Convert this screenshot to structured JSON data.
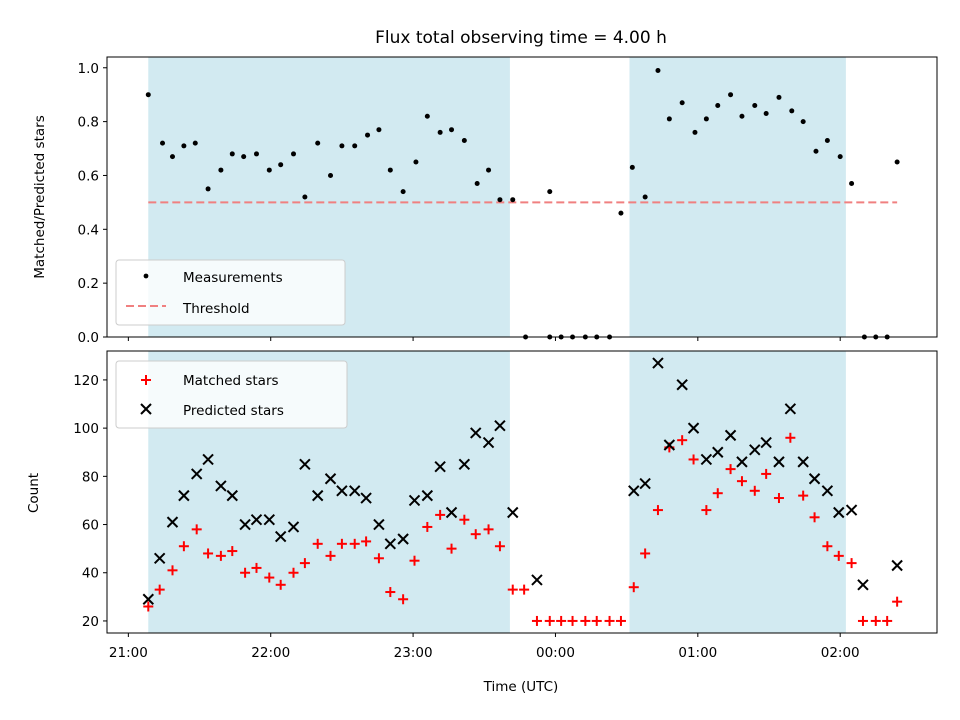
{
  "title": "Flux total observing time = 4.00 h",
  "xlabel": "Time (UTC)",
  "x_tick_labels": [
    "21:00",
    "22:00",
    "23:00",
    "00:00",
    "01:00",
    "02:00"
  ],
  "colors": {
    "shade": "#add8e6",
    "threshold": "#f08080",
    "matched": "#ff0000",
    "predicted": "#000000",
    "measurement": "#000000"
  },
  "chart_data": [
    {
      "type": "scatter",
      "ylabel": "Matched/Predicted stars",
      "x_unit": "hours after 21:00 UTC",
      "xlim": [
        -0.15,
        5.68
      ],
      "ylim": [
        0.0,
        1.04
      ],
      "y_ticks": [
        "0.0",
        "0.2",
        "0.4",
        "0.6",
        "0.8",
        "1.0"
      ],
      "shaded_intervals": [
        [
          0.14,
          2.68
        ],
        [
          3.52,
          5.04
        ]
      ],
      "legend": {
        "location": "lower left",
        "entries": [
          "Measurements",
          "Threshold"
        ]
      },
      "threshold": {
        "name": "Threshold",
        "value": 0.5,
        "x": [
          0.14,
          5.4
        ]
      },
      "series": [
        {
          "name": "Measurements",
          "marker": "dot",
          "points": [
            [
              0.14,
              0.9
            ],
            [
              0.24,
              0.72
            ],
            [
              0.31,
              0.67
            ],
            [
              0.39,
              0.71
            ],
            [
              0.47,
              0.72
            ],
            [
              0.56,
              0.55
            ],
            [
              0.65,
              0.62
            ],
            [
              0.73,
              0.68
            ],
            [
              0.81,
              0.67
            ],
            [
              0.9,
              0.68
            ],
            [
              0.99,
              0.62
            ],
            [
              1.07,
              0.64
            ],
            [
              1.16,
              0.68
            ],
            [
              1.24,
              0.52
            ],
            [
              1.33,
              0.72
            ],
            [
              1.42,
              0.6
            ],
            [
              1.5,
              0.71
            ],
            [
              1.59,
              0.71
            ],
            [
              1.68,
              0.75
            ],
            [
              1.76,
              0.77
            ],
            [
              1.84,
              0.62
            ],
            [
              1.93,
              0.54
            ],
            [
              2.02,
              0.65
            ],
            [
              2.1,
              0.82
            ],
            [
              2.19,
              0.76
            ],
            [
              2.27,
              0.77
            ],
            [
              2.36,
              0.73
            ],
            [
              2.45,
              0.57
            ],
            [
              2.53,
              0.62
            ],
            [
              2.61,
              0.51
            ],
            [
              2.7,
              0.51
            ],
            [
              2.79,
              0.0
            ],
            [
              2.96,
              0.54
            ],
            [
              2.96,
              0.0
            ],
            [
              3.04,
              0.0
            ],
            [
              3.12,
              0.0
            ],
            [
              3.21,
              0.0
            ],
            [
              3.29,
              0.0
            ],
            [
              3.38,
              0.0
            ],
            [
              3.46,
              0.46
            ],
            [
              3.54,
              0.63
            ],
            [
              3.63,
              0.52
            ],
            [
              3.72,
              0.99
            ],
            [
              3.8,
              0.81
            ],
            [
              3.89,
              0.87
            ],
            [
              3.98,
              0.76
            ],
            [
              4.06,
              0.81
            ],
            [
              4.14,
              0.86
            ],
            [
              4.23,
              0.9
            ],
            [
              4.31,
              0.82
            ],
            [
              4.4,
              0.86
            ],
            [
              4.48,
              0.83
            ],
            [
              4.57,
              0.89
            ],
            [
              4.66,
              0.84
            ],
            [
              4.74,
              0.8
            ],
            [
              4.83,
              0.69
            ],
            [
              4.91,
              0.73
            ],
            [
              5.0,
              0.67
            ],
            [
              5.08,
              0.57
            ],
            [
              5.17,
              0.0
            ],
            [
              5.25,
              0.0
            ],
            [
              5.33,
              0.0
            ],
            [
              5.4,
              0.65
            ]
          ]
        }
      ]
    },
    {
      "type": "scatter",
      "ylabel": "Count",
      "x_unit": "hours after 21:00 UTC",
      "xlim": [
        -0.15,
        5.68
      ],
      "ylim": [
        15,
        132
      ],
      "y_ticks": [
        "20",
        "40",
        "60",
        "80",
        "100",
        "120"
      ],
      "shaded_intervals": [
        [
          0.14,
          2.68
        ],
        [
          3.52,
          5.04
        ]
      ],
      "legend": {
        "location": "upper left",
        "entries": [
          "Matched stars",
          "Predicted stars"
        ]
      },
      "series": [
        {
          "name": "Matched stars",
          "marker": "plus",
          "points": [
            [
              0.14,
              26
            ],
            [
              0.22,
              33
            ],
            [
              0.31,
              41
            ],
            [
              0.39,
              51
            ],
            [
              0.48,
              58
            ],
            [
              0.56,
              48
            ],
            [
              0.65,
              47
            ],
            [
              0.73,
              49
            ],
            [
              0.82,
              40
            ],
            [
              0.9,
              42
            ],
            [
              0.99,
              38
            ],
            [
              1.07,
              35
            ],
            [
              1.16,
              40
            ],
            [
              1.24,
              44
            ],
            [
              1.33,
              52
            ],
            [
              1.42,
              47
            ],
            [
              1.5,
              52
            ],
            [
              1.59,
              52
            ],
            [
              1.67,
              53
            ],
            [
              1.76,
              46
            ],
            [
              1.84,
              32
            ],
            [
              1.93,
              29
            ],
            [
              2.01,
              45
            ],
            [
              2.1,
              59
            ],
            [
              2.19,
              64
            ],
            [
              2.27,
              50
            ],
            [
              2.36,
              62
            ],
            [
              2.44,
              56
            ],
            [
              2.53,
              58
            ],
            [
              2.61,
              51
            ],
            [
              2.7,
              33
            ],
            [
              2.78,
              33
            ],
            [
              2.87,
              20
            ],
            [
              2.96,
              20
            ],
            [
              3.04,
              20
            ],
            [
              3.12,
              20
            ],
            [
              3.21,
              20
            ],
            [
              3.29,
              20
            ],
            [
              3.38,
              20
            ],
            [
              3.46,
              20
            ],
            [
              3.55,
              34
            ],
            [
              3.63,
              48
            ],
            [
              3.72,
              66
            ],
            [
              3.8,
              92
            ],
            [
              3.89,
              95
            ],
            [
              3.97,
              87
            ],
            [
              4.06,
              66
            ],
            [
              4.14,
              73
            ],
            [
              4.23,
              83
            ],
            [
              4.31,
              78
            ],
            [
              4.4,
              74
            ],
            [
              4.48,
              81
            ],
            [
              4.57,
              71
            ],
            [
              4.65,
              96
            ],
            [
              4.74,
              72
            ],
            [
              4.82,
              63
            ],
            [
              4.91,
              51
            ],
            [
              4.99,
              47
            ],
            [
              5.08,
              44
            ],
            [
              5.16,
              20
            ],
            [
              5.25,
              20
            ],
            [
              5.33,
              20
            ],
            [
              5.4,
              28
            ]
          ]
        },
        {
          "name": "Predicted stars",
          "marker": "x",
          "points": [
            [
              0.14,
              29
            ],
            [
              0.22,
              46
            ],
            [
              0.31,
              61
            ],
            [
              0.39,
              72
            ],
            [
              0.48,
              81
            ],
            [
              0.56,
              87
            ],
            [
              0.65,
              76
            ],
            [
              0.73,
              72
            ],
            [
              0.82,
              60
            ],
            [
              0.9,
              62
            ],
            [
              0.99,
              62
            ],
            [
              1.07,
              55
            ],
            [
              1.16,
              59
            ],
            [
              1.24,
              85
            ],
            [
              1.33,
              72
            ],
            [
              1.42,
              79
            ],
            [
              1.5,
              74
            ],
            [
              1.59,
              74
            ],
            [
              1.67,
              71
            ],
            [
              1.76,
              60
            ],
            [
              1.84,
              52
            ],
            [
              1.93,
              54
            ],
            [
              2.01,
              70
            ],
            [
              2.1,
              72
            ],
            [
              2.19,
              84
            ],
            [
              2.27,
              65
            ],
            [
              2.36,
              85
            ],
            [
              2.44,
              98
            ],
            [
              2.53,
              94
            ],
            [
              2.61,
              101
            ],
            [
              2.7,
              65
            ],
            [
              2.87,
              37
            ],
            [
              3.55,
              74
            ],
            [
              3.63,
              77
            ],
            [
              3.72,
              127
            ],
            [
              3.8,
              93
            ],
            [
              3.89,
              118
            ],
            [
              3.97,
              100
            ],
            [
              4.06,
              87
            ],
            [
              4.14,
              90
            ],
            [
              4.23,
              97
            ],
            [
              4.31,
              86
            ],
            [
              4.4,
              91
            ],
            [
              4.48,
              94
            ],
            [
              4.57,
              86
            ],
            [
              4.65,
              108
            ],
            [
              4.74,
              86
            ],
            [
              4.82,
              79
            ],
            [
              4.91,
              74
            ],
            [
              4.99,
              65
            ],
            [
              5.08,
              66
            ],
            [
              5.16,
              35
            ],
            [
              5.4,
              43
            ]
          ]
        }
      ]
    }
  ]
}
